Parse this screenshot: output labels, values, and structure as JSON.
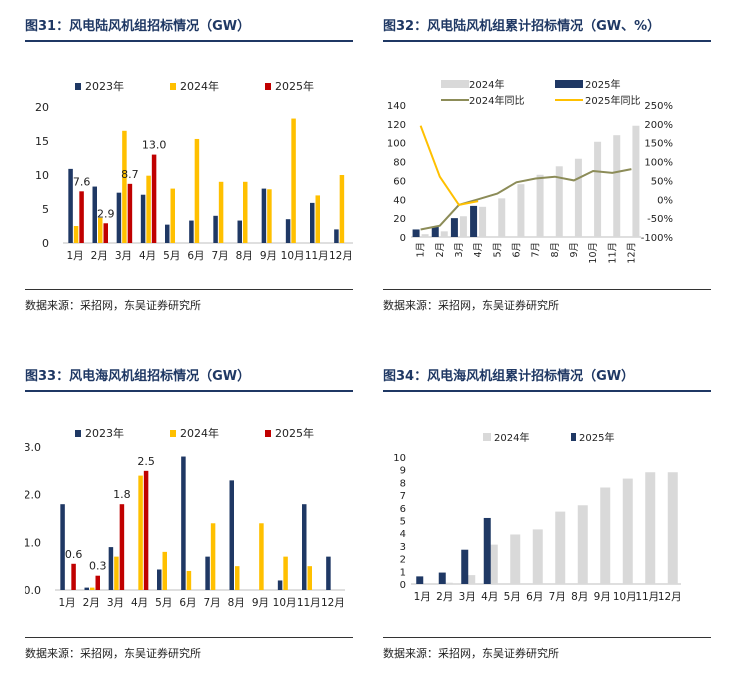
{
  "source_text": "数据来源：采招网，东吴证券研究所",
  "colors": {
    "c2023": "#1f3864",
    "c2024": "#ffc000",
    "c2025": "#c00000",
    "cum2024": "#d9d9d9",
    "cum2025": "#1f3864",
    "yoy2024": "#8c8c58",
    "yoy2025": "#ffc000"
  },
  "chart_data": [
    {
      "id": "fig31",
      "type": "bar",
      "title": "图31：风电陆风机组招标情况（GW）",
      "categories": [
        "1月",
        "2月",
        "3月",
        "4月",
        "5月",
        "6月",
        "7月",
        "8月",
        "9月",
        "10月",
        "11月",
        "12月"
      ],
      "ylim": [
        0,
        20
      ],
      "yticks": [
        "0",
        "5",
        "10",
        "15",
        "20"
      ],
      "legend_position": "top",
      "series": [
        {
          "name": "2023年",
          "values": [
            10.9,
            8.3,
            7.4,
            7.1,
            2.7,
            3.3,
            4.0,
            3.3,
            8.0,
            3.5,
            5.9,
            2.0
          ]
        },
        {
          "name": "2024年",
          "values": [
            2.5,
            3.7,
            16.5,
            9.9,
            8.0,
            15.3,
            9.0,
            9.0,
            7.9,
            18.3,
            7.0,
            10.0
          ]
        },
        {
          "name": "2025年",
          "values": [
            7.6,
            2.9,
            8.7,
            13.0,
            null,
            null,
            null,
            null,
            null,
            null,
            null,
            null
          ]
        }
      ],
      "data_labels": [
        "7.6",
        "2.9",
        "8.7",
        "13.0"
      ]
    },
    {
      "id": "fig32",
      "type": "bar+line",
      "title": "图32：风电陆风机组累计招标情况（GW、%）",
      "categories": [
        "1月",
        "2月",
        "3月",
        "4月",
        "5月",
        "6月",
        "7月",
        "8月",
        "9月",
        "10月",
        "11月",
        "12月"
      ],
      "ylim": [
        0,
        140
      ],
      "yticks": [
        "0",
        "20",
        "40",
        "60",
        "80",
        "100",
        "120",
        "140"
      ],
      "y2lim": [
        -100,
        250
      ],
      "y2ticks": [
        "-100%",
        "-50%",
        "0%",
        "50%",
        "100%",
        "150%",
        "200%",
        "250%"
      ],
      "legend_position": "top",
      "series": [
        {
          "name": "2024年",
          "type": "bar",
          "values": [
            3,
            6,
            22,
            32,
            41,
            56,
            66,
            75,
            83,
            101,
            108,
            118
          ]
        },
        {
          "name": "2025年",
          "type": "bar",
          "values": [
            8,
            11,
            20,
            33,
            null,
            null,
            null,
            null,
            null,
            null,
            null,
            null
          ]
        },
        {
          "name": "2024年同比",
          "type": "line",
          "axis": "right",
          "values": [
            -80,
            -70,
            -15,
            0,
            15,
            45,
            55,
            60,
            50,
            75,
            70,
            80
          ]
        },
        {
          "name": "2025年同比",
          "type": "line",
          "axis": "right",
          "values": [
            195,
            60,
            -15,
            -5,
            null,
            null,
            null,
            null,
            null,
            null,
            null,
            null
          ]
        }
      ]
    },
    {
      "id": "fig33",
      "type": "bar",
      "title": "图33：风电海风机组招标情况（GW）",
      "categories": [
        "1月",
        "2月",
        "3月",
        "4月",
        "5月",
        "6月",
        "7月",
        "8月",
        "9月",
        "10月",
        "11月",
        "12月"
      ],
      "ylim": [
        0,
        3
      ],
      "yticks": [
        "0.0",
        "1.0",
        "2.0",
        "3.0"
      ],
      "legend_position": "top",
      "series": [
        {
          "name": "2023年",
          "values": [
            1.8,
            0.05,
            0.9,
            0,
            0.43,
            2.8,
            0.7,
            2.3,
            0,
            0.2,
            1.8,
            0.7
          ]
        },
        {
          "name": "2024年",
          "values": [
            0,
            0.05,
            0.7,
            2.4,
            0.8,
            0.4,
            1.4,
            0.5,
            1.4,
            0.7,
            0.5,
            0
          ]
        },
        {
          "name": "2025年",
          "values": [
            0.55,
            0.3,
            1.8,
            2.5,
            null,
            null,
            null,
            null,
            null,
            null,
            null,
            null
          ]
        }
      ],
      "data_labels": [
        "0.6",
        "0.3",
        "1.8",
        "2.5"
      ]
    },
    {
      "id": "fig34",
      "type": "bar",
      "title": "图34：风电海风机组累计招标情况（GW）",
      "categories": [
        "1月",
        "2月",
        "3月",
        "4月",
        "5月",
        "6月",
        "7月",
        "8月",
        "9月",
        "10月",
        "11月",
        "12月"
      ],
      "ylim": [
        0,
        10
      ],
      "yticks": [
        "0",
        "1",
        "2",
        "3",
        "4",
        "5",
        "6",
        "7",
        "8",
        "9",
        "10"
      ],
      "legend_position": "top",
      "series": [
        {
          "name": "2024年",
          "values": [
            0,
            0.1,
            0.7,
            3.1,
            3.9,
            4.3,
            5.7,
            6.2,
            7.6,
            8.3,
            8.8,
            8.8
          ]
        },
        {
          "name": "2025年",
          "values": [
            0.6,
            0.9,
            2.7,
            5.2,
            null,
            null,
            null,
            null,
            null,
            null,
            null,
            null
          ]
        }
      ]
    }
  ]
}
